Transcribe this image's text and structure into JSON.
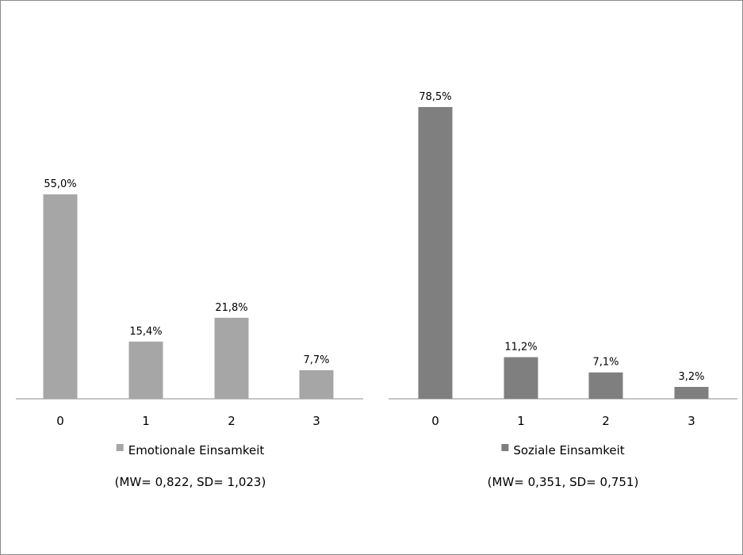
{
  "chart_data": [
    {
      "type": "bar",
      "categories": [
        "0",
        "1",
        "2",
        "3"
      ],
      "series": [
        {
          "name": "Emotionale Einsamkeit",
          "values": [
            55.0,
            15.4,
            21.8,
            7.7
          ],
          "labels": [
            "55,0%",
            "15,4%",
            "21,8%",
            "7,7%"
          ]
        }
      ],
      "color": "#a6a6a6",
      "ylim": [
        0,
        85
      ],
      "grid": false,
      "legend": "bottom",
      "annotation": "(MW= 0,822, SD= 1,023)"
    },
    {
      "type": "bar",
      "categories": [
        "0",
        "1",
        "2",
        "3"
      ],
      "series": [
        {
          "name": "Soziale Einsamkeit",
          "values": [
            78.5,
            11.2,
            7.1,
            3.2
          ],
          "labels": [
            "78,5%",
            "11,2%",
            "7,1%",
            "3,2%"
          ]
        }
      ],
      "color": "#7f7f7f",
      "ylim": [
        0,
        85
      ],
      "grid": false,
      "legend": "bottom",
      "annotation": "(MW= 0,351, SD= 0,751)"
    }
  ]
}
